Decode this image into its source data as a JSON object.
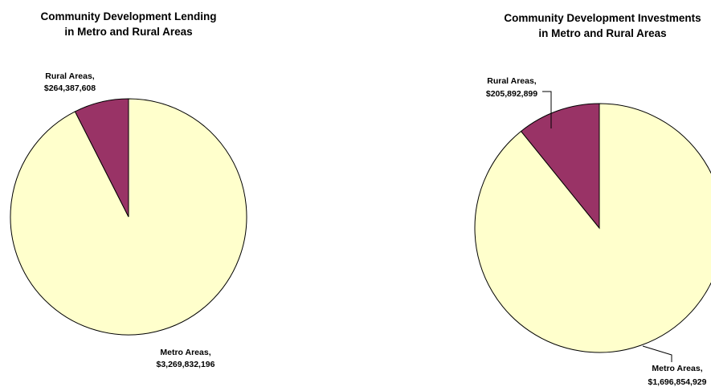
{
  "colors": {
    "metro": "#ffffcc",
    "rural": "#993366",
    "stroke": "#000000"
  },
  "chart_data": [
    {
      "type": "pie",
      "title_line1": "Community Development Lending",
      "title_line2": "in Metro and Rural Areas",
      "slices": [
        {
          "label": "Metro Areas,",
          "value_text": "$3,269,832,196",
          "value": 3269832196
        },
        {
          "label": "Rural Areas,",
          "value_text": "$264,387,608",
          "value": 264387608
        }
      ]
    },
    {
      "type": "pie",
      "title_line1": "Community Development Investments",
      "title_line2": "in Metro and Rural Areas",
      "slices": [
        {
          "label": "Metro Areas,",
          "value_text": "$1,696,854,929",
          "value": 1696854929
        },
        {
          "label": "Rural Areas,",
          "value_text": "$205,892,899",
          "value": 205892899
        }
      ]
    }
  ]
}
